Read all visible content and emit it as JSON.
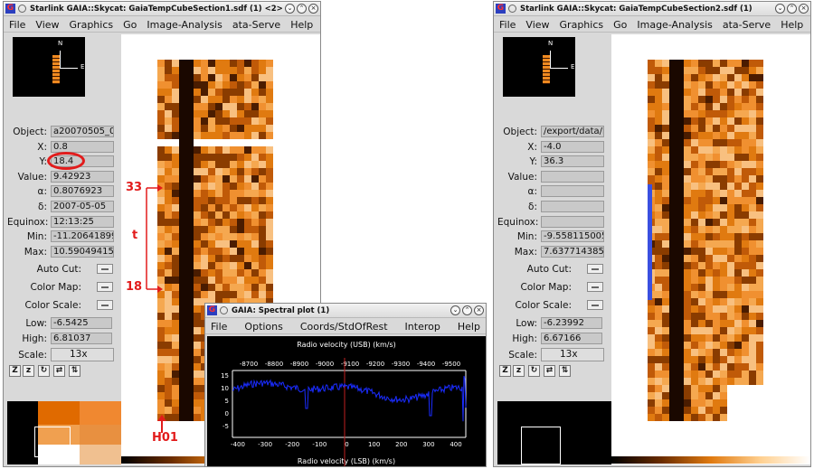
{
  "window1": {
    "title": "Starlink GAIA::Skycat: GaiaTempCubeSection1.sdf (1) <2>",
    "menu": [
      "File",
      "View",
      "Graphics",
      "Go",
      "Image-Analysis",
      "ata-Serve",
      "Help"
    ],
    "fields": [
      {
        "label": "Object:",
        "value": "a20070505_0"
      },
      {
        "label": "X:",
        "value": "0.8"
      },
      {
        "label": "Y:",
        "value": "18.4"
      },
      {
        "label": "Value:",
        "value": "9.42923"
      },
      {
        "label": "α:",
        "value": "0.8076923"
      },
      {
        "label": "δ:",
        "value": "2007-05-05"
      },
      {
        "label": "Equinox:",
        "value": "12:13:25"
      },
      {
        "label": "Min:",
        "value": "-11.20641899"
      },
      {
        "label": "Max:",
        "value": "10.59049415"
      }
    ],
    "controls": {
      "auto_cut": "Auto Cut:",
      "color_map": "Color Map:",
      "color_scale": "Color Scale:"
    },
    "low_label": "Low:",
    "low_value": "-6.5425",
    "high_label": "High:",
    "high_value": "6.81037",
    "scale_label": "Scale:",
    "scale_value": "13x",
    "compass": {
      "north": "N",
      "east": "E"
    }
  },
  "window2": {
    "title": "Starlink GAIA::Skycat: GaiaTempCubeSection2.sdf (1)",
    "menu": [
      "File",
      "View",
      "Graphics",
      "Go",
      "Image-Analysis",
      "ata-Serve",
      "Help"
    ],
    "fields": [
      {
        "label": "Object:",
        "value": "/export/data/l"
      },
      {
        "label": "X:",
        "value": "-4.0"
      },
      {
        "label": "Y:",
        "value": "36.3"
      },
      {
        "label": "Value:",
        "value": ""
      },
      {
        "label": "α:",
        "value": ""
      },
      {
        "label": "δ:",
        "value": ""
      },
      {
        "label": "Equinox:",
        "value": ""
      },
      {
        "label": "Min:",
        "value": "-9.558115005"
      },
      {
        "label": "Max:",
        "value": "7.6377143859"
      }
    ],
    "controls": {
      "auto_cut": "Auto Cut:",
      "color_map": "Color Map:",
      "color_scale": "Color Scale:"
    },
    "low_label": "Low:",
    "low_value": "-6.23992",
    "high_label": "High:",
    "high_value": "6.67166",
    "scale_label": "Scale:",
    "scale_value": "13x",
    "compass": {
      "north": "N",
      "east": "E"
    }
  },
  "spectral": {
    "title": "GAIA: Spectral plot (1)",
    "menu": [
      "File",
      "Options",
      "Coords/StdOfRest",
      "Interop",
      "Help"
    ],
    "top_axis_label": "Radio velocity (USB) (km/s)",
    "bottom_axis_label": "Radio velocity (LSB) (km/s)",
    "top_ticks": [
      "-8700",
      "-8800",
      "-8900",
      "-9000",
      "-9100",
      "-9200",
      "-9300",
      "-9400",
      "-9500"
    ],
    "bottom_ticks": [
      "-400",
      "-300",
      "-200",
      "-100",
      "0",
      "100",
      "200",
      "300",
      "400"
    ],
    "y_ticks": [
      "15",
      "10",
      "5",
      "0",
      "-5"
    ]
  },
  "annotations": {
    "label_33": "33",
    "label_t": "t",
    "label_18": "18",
    "label_h01": "H01"
  },
  "colors": {
    "accent": "#e21b1b",
    "spectrum": "#1a2cff",
    "heat_dark": "#1a0800",
    "heat_mid": "#e07a10",
    "heat_light": "#fde8c8"
  }
}
